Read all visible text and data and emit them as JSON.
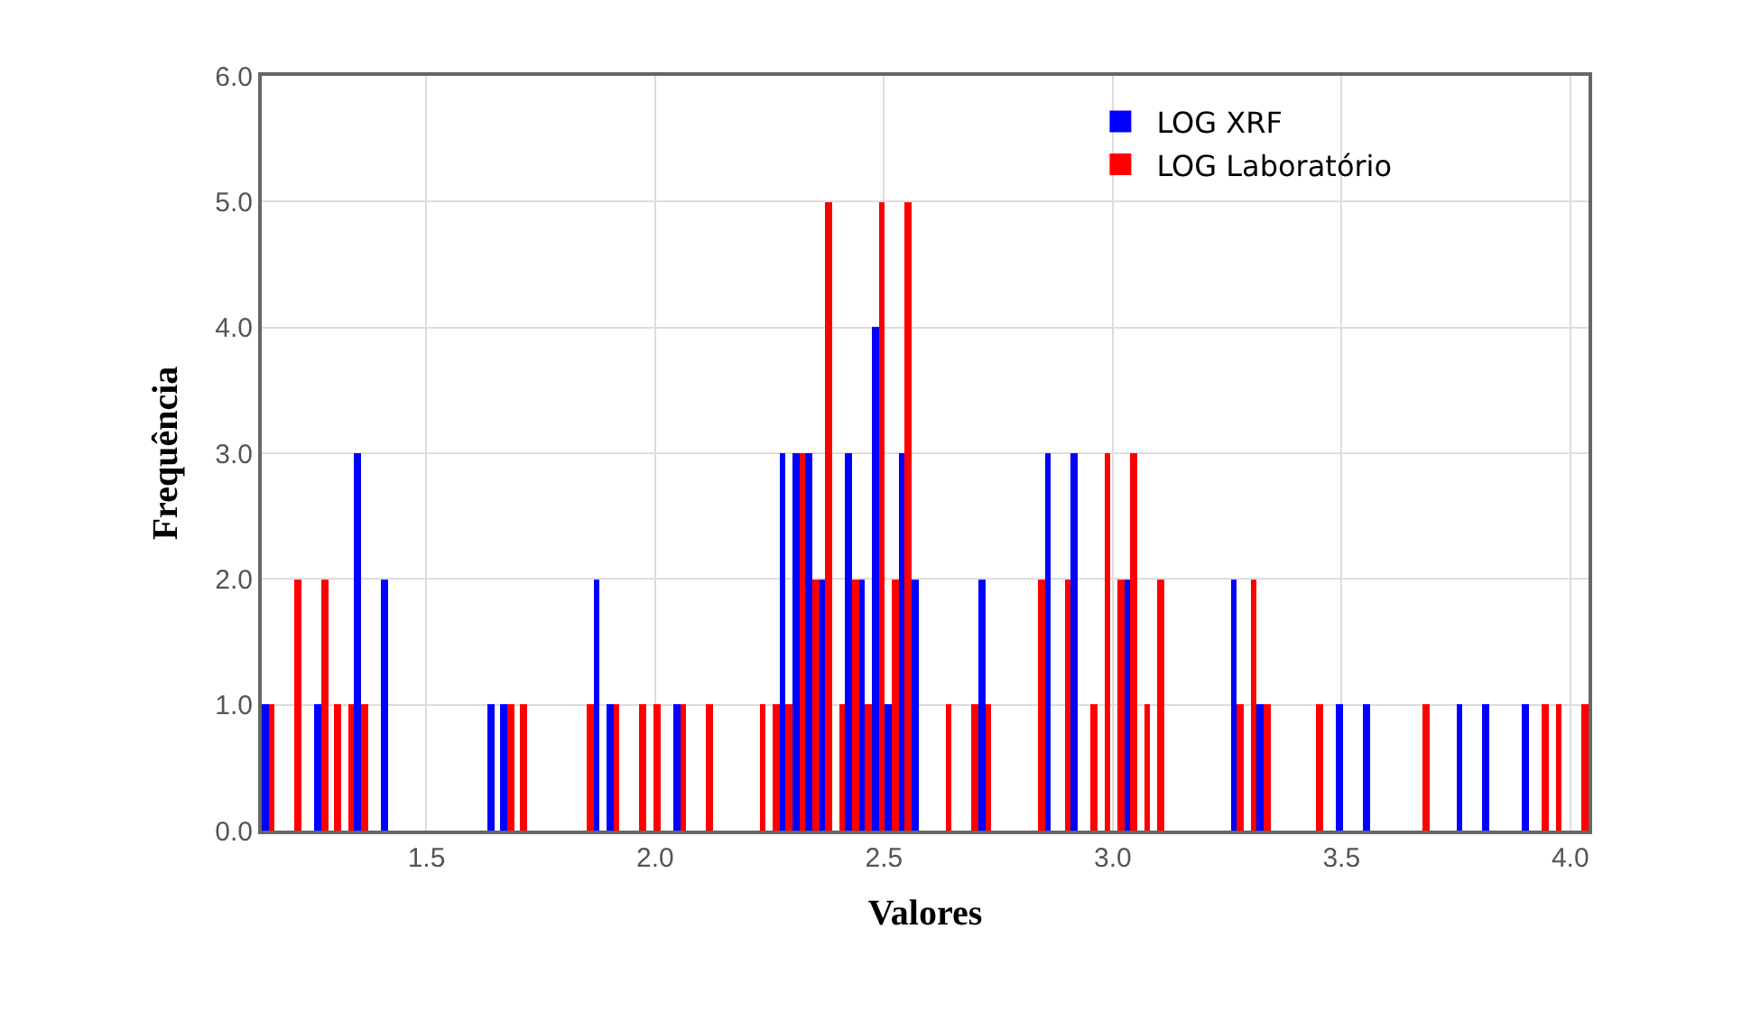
{
  "chart_data": {
    "type": "histogram",
    "xlabel": "Valores",
    "ylabel": "Frequência",
    "bins": [
      1.14,
      1.169,
      1.198,
      1.227,
      1.256,
      1.285,
      1.314,
      1.343,
      1.372,
      1.401,
      1.43,
      1.459,
      1.488,
      1.517,
      1.546,
      1.575,
      1.604,
      1.633,
      1.662,
      1.691,
      1.72,
      1.749,
      1.778,
      1.807,
      1.836,
      1.865,
      1.894,
      1.923,
      1.952,
      1.981,
      2.01,
      2.039,
      2.068,
      2.097,
      2.126,
      2.155,
      2.184,
      2.213,
      2.242,
      2.271,
      2.3,
      2.329,
      2.358,
      2.387,
      2.416,
      2.445,
      2.474,
      2.503,
      2.532,
      2.561,
      2.59,
      2.619,
      2.648,
      2.677,
      2.706,
      2.735,
      2.764,
      2.793,
      2.822,
      2.851,
      2.88,
      2.909,
      2.938,
      2.967,
      2.996,
      3.025,
      3.054,
      3.083,
      3.112,
      3.141,
      3.17,
      3.199,
      3.228,
      3.257,
      3.286,
      3.315,
      3.344,
      3.373,
      3.402,
      3.431,
      3.46,
      3.489,
      3.518,
      3.547,
      3.576,
      3.605,
      3.634,
      3.663,
      3.692,
      3.721,
      3.75,
      3.779,
      3.808,
      3.837,
      3.866,
      3.895,
      3.924,
      3.953,
      3.982,
      4.011,
      4.04
    ],
    "series": [
      {
        "name": "LOG XRF",
        "color": "#0000ff",
        "values": [
          1,
          0,
          0,
          0,
          1,
          0,
          0,
          3,
          0,
          2,
          0,
          0,
          0,
          0,
          0,
          0,
          0,
          1,
          1,
          0,
          0,
          0,
          0,
          0,
          0,
          2,
          1,
          0,
          0,
          0,
          0,
          1,
          0,
          0,
          0,
          0,
          0,
          0,
          0,
          3,
          3,
          3,
          2,
          0,
          3,
          2,
          4,
          1,
          3,
          2,
          0,
          0,
          0,
          0,
          2,
          0,
          0,
          0,
          0,
          3,
          0,
          3,
          0,
          0,
          0,
          2,
          0,
          0,
          0,
          0,
          0,
          0,
          0,
          2,
          0,
          1,
          0,
          0,
          0,
          0,
          0,
          1,
          0,
          1,
          0,
          0,
          0,
          0,
          0,
          0,
          1,
          0,
          1,
          0,
          0,
          1,
          0,
          0,
          0,
          0
        ]
      },
      {
        "name": "LOG Laboratório",
        "color": "#ff0000",
        "values": [
          1,
          0,
          2,
          0,
          2,
          1,
          1,
          1,
          0,
          0,
          0,
          0,
          0,
          0,
          0,
          0,
          0,
          0,
          1,
          1,
          0,
          0,
          0,
          0,
          1,
          0,
          1,
          0,
          1,
          1,
          0,
          1,
          0,
          1,
          0,
          0,
          0,
          1,
          1,
          1,
          3,
          2,
          5,
          1,
          2,
          1,
          5,
          2,
          5,
          0,
          0,
          1,
          0,
          1,
          1,
          0,
          0,
          0,
          2,
          0,
          2,
          0,
          1,
          3,
          2,
          3,
          1,
          2,
          0,
          0,
          0,
          0,
          0,
          1,
          2,
          1,
          0,
          0,
          0,
          1,
          0,
          0,
          0,
          0,
          0,
          0,
          0,
          1,
          0,
          0,
          0,
          0,
          0,
          0,
          0,
          0,
          1,
          1,
          0,
          1
        ]
      }
    ],
    "xlim": [
      1.14,
      4.04
    ],
    "xticks": [
      {
        "value": 1.5,
        "label": "1.5"
      },
      {
        "value": 2,
        "label": "2.0"
      },
      {
        "value": 2.5,
        "label": "2.5"
      },
      {
        "value": 3,
        "label": "3.0"
      },
      {
        "value": 3.5,
        "label": "3.5"
      },
      {
        "value": 4,
        "label": "4.0"
      }
    ],
    "ylim": [
      0,
      6
    ],
    "yticks": [
      {
        "value": 0,
        "label": "0.0"
      },
      {
        "value": 1,
        "label": "1.0"
      },
      {
        "value": 2,
        "label": "2.0"
      },
      {
        "value": 3,
        "label": "3.0"
      },
      {
        "value": 4,
        "label": "4.0"
      },
      {
        "value": 5,
        "label": "5.0"
      },
      {
        "value": 6,
        "label": "6.0"
      }
    ],
    "grid": true,
    "legend": "top right"
  }
}
